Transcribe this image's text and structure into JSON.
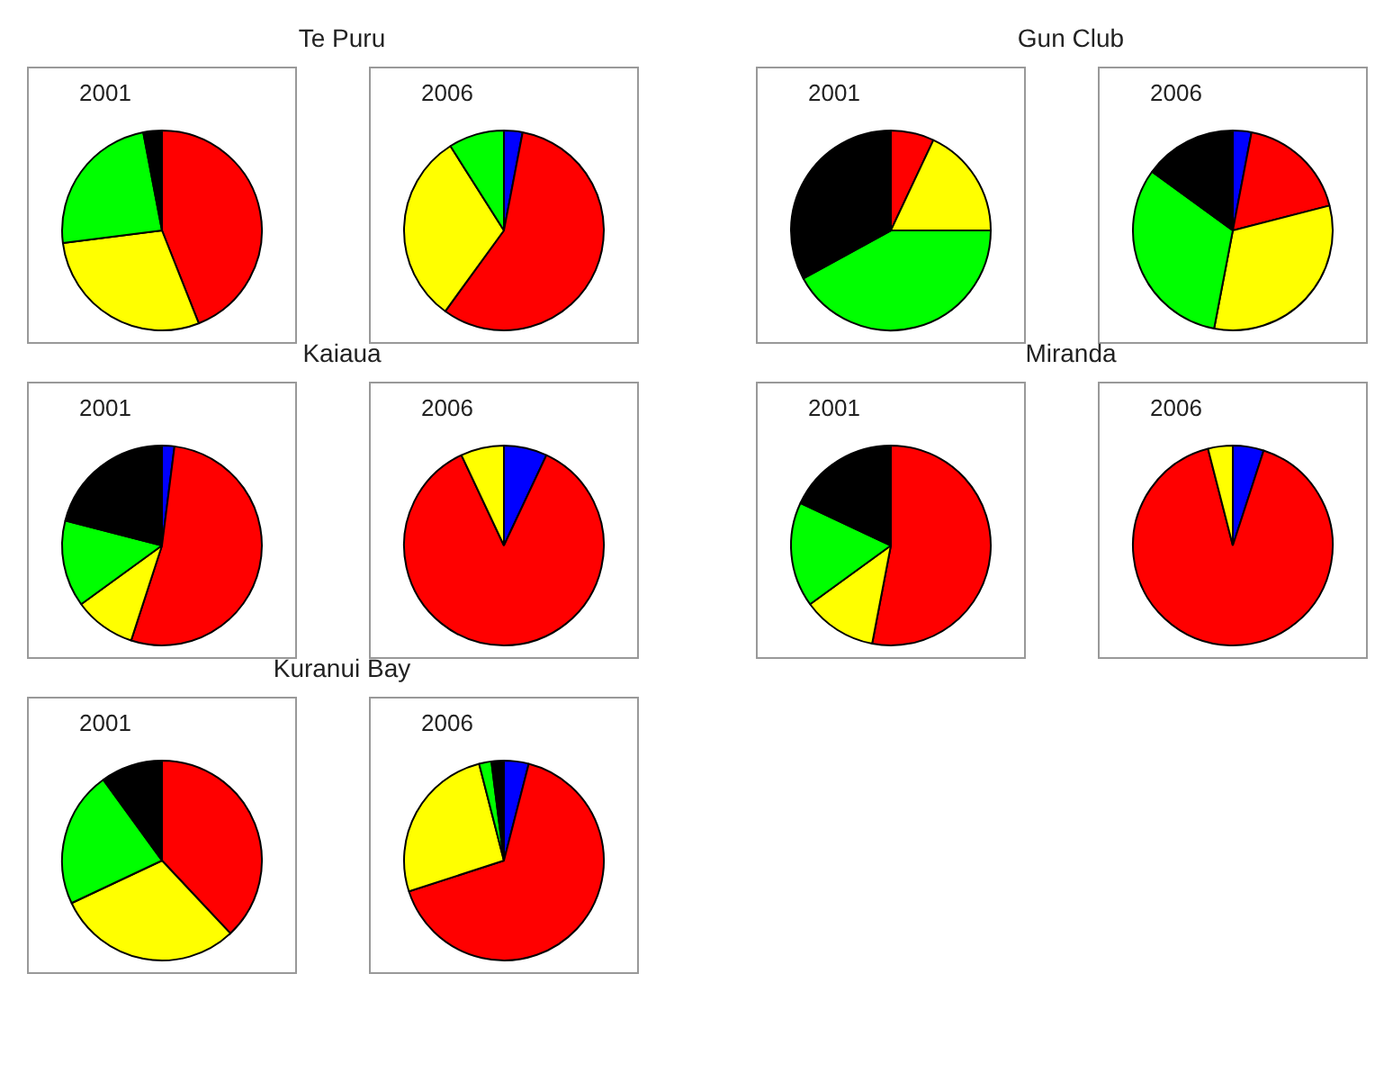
{
  "chart_data": [
    {
      "type": "pie",
      "title": "Te Puru",
      "subtitle": "2001",
      "categories": [
        null,
        null,
        null,
        null
      ],
      "values": [
        44,
        29,
        24,
        3
      ],
      "colors": [
        "#ff0000",
        "#ffff00",
        "#00ff00",
        "#000000"
      ]
    },
    {
      "type": "pie",
      "subtitle": "2006",
      "categories": [
        null,
        null,
        null,
        null
      ],
      "values": [
        3,
        57,
        31,
        9
      ],
      "colors": [
        "#0000ff",
        "#ff0000",
        "#ffff00",
        "#00ff00"
      ]
    },
    {
      "type": "pie",
      "title": "Gun Club",
      "subtitle": "2001",
      "categories": [
        null,
        null,
        null,
        null
      ],
      "values": [
        7,
        18,
        42,
        33
      ],
      "colors": [
        "#ff0000",
        "#ffff00",
        "#00ff00",
        "#000000"
      ]
    },
    {
      "type": "pie",
      "subtitle": "2006",
      "categories": [
        null,
        null,
        null,
        null,
        null
      ],
      "values": [
        3,
        18,
        32,
        32,
        15
      ],
      "colors": [
        "#0000ff",
        "#ff0000",
        "#ffff00",
        "#00ff00",
        "#000000"
      ]
    },
    {
      "type": "pie",
      "title": "Kaiaua",
      "subtitle": "2001",
      "categories": [
        null,
        null,
        null,
        null,
        null
      ],
      "values": [
        2,
        53,
        10,
        14,
        21
      ],
      "colors": [
        "#0000ff",
        "#ff0000",
        "#ffff00",
        "#00ff00",
        "#000000"
      ]
    },
    {
      "type": "pie",
      "subtitle": "2006",
      "categories": [
        null,
        null,
        null
      ],
      "values": [
        7,
        86,
        7
      ],
      "colors": [
        "#0000ff",
        "#ff0000",
        "#ffff00"
      ]
    },
    {
      "type": "pie",
      "title": "Miranda",
      "subtitle": "2001",
      "categories": [
        null,
        null,
        null,
        null
      ],
      "values": [
        53,
        12,
        17,
        18
      ],
      "colors": [
        "#ff0000",
        "#ffff00",
        "#00ff00",
        "#000000"
      ]
    },
    {
      "type": "pie",
      "subtitle": "2006",
      "categories": [
        null,
        null,
        null
      ],
      "values": [
        5,
        91,
        4
      ],
      "colors": [
        "#0000ff",
        "#ff0000",
        "#ffff00"
      ]
    },
    {
      "type": "pie",
      "title": "Kuranui Bay",
      "subtitle": "2001",
      "categories": [
        null,
        null,
        null,
        null
      ],
      "values": [
        38,
        30,
        22,
        10
      ],
      "colors": [
        "#ff0000",
        "#ffff00",
        "#00ff00",
        "#000000"
      ]
    },
    {
      "type": "pie",
      "subtitle": "2006",
      "categories": [
        null,
        null,
        null,
        null,
        null
      ],
      "values": [
        4,
        66,
        26,
        2,
        2
      ],
      "colors": [
        "#0000ff",
        "#ff0000",
        "#ffff00",
        "#00ff00",
        "#000000"
      ]
    }
  ]
}
